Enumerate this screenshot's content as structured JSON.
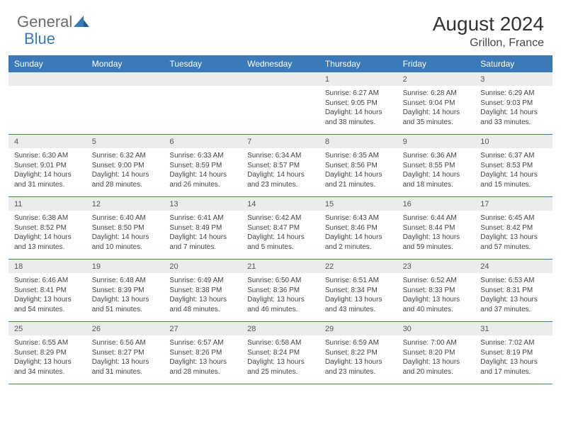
{
  "brand": {
    "part1": "General",
    "part2": "Blue"
  },
  "title": "August 2024",
  "location": "Grillon, France",
  "colors": {
    "header_bg": "#3a7ab8",
    "stripe_bg": "#ececec",
    "border": "#3a7ab8",
    "text": "#444444",
    "title_text": "#333333"
  },
  "dayNames": [
    "Sunday",
    "Monday",
    "Tuesday",
    "Wednesday",
    "Thursday",
    "Friday",
    "Saturday"
  ],
  "weeks": [
    {
      "nums": [
        "",
        "",
        "",
        "",
        "1",
        "2",
        "3"
      ],
      "cells": [
        null,
        null,
        null,
        null,
        {
          "sunrise": "6:27 AM",
          "sunset": "9:05 PM",
          "daylight": "14 hours and 38 minutes."
        },
        {
          "sunrise": "6:28 AM",
          "sunset": "9:04 PM",
          "daylight": "14 hours and 35 minutes."
        },
        {
          "sunrise": "6:29 AM",
          "sunset": "9:03 PM",
          "daylight": "14 hours and 33 minutes."
        }
      ]
    },
    {
      "nums": [
        "4",
        "5",
        "6",
        "7",
        "8",
        "9",
        "10"
      ],
      "cells": [
        {
          "sunrise": "6:30 AM",
          "sunset": "9:01 PM",
          "daylight": "14 hours and 31 minutes."
        },
        {
          "sunrise": "6:32 AM",
          "sunset": "9:00 PM",
          "daylight": "14 hours and 28 minutes."
        },
        {
          "sunrise": "6:33 AM",
          "sunset": "8:59 PM",
          "daylight": "14 hours and 26 minutes."
        },
        {
          "sunrise": "6:34 AM",
          "sunset": "8:57 PM",
          "daylight": "14 hours and 23 minutes."
        },
        {
          "sunrise": "6:35 AM",
          "sunset": "8:56 PM",
          "daylight": "14 hours and 21 minutes."
        },
        {
          "sunrise": "6:36 AM",
          "sunset": "8:55 PM",
          "daylight": "14 hours and 18 minutes."
        },
        {
          "sunrise": "6:37 AM",
          "sunset": "8:53 PM",
          "daylight": "14 hours and 15 minutes."
        }
      ]
    },
    {
      "nums": [
        "11",
        "12",
        "13",
        "14",
        "15",
        "16",
        "17"
      ],
      "cells": [
        {
          "sunrise": "6:38 AM",
          "sunset": "8:52 PM",
          "daylight": "14 hours and 13 minutes."
        },
        {
          "sunrise": "6:40 AM",
          "sunset": "8:50 PM",
          "daylight": "14 hours and 10 minutes."
        },
        {
          "sunrise": "6:41 AM",
          "sunset": "8:49 PM",
          "daylight": "14 hours and 7 minutes."
        },
        {
          "sunrise": "6:42 AM",
          "sunset": "8:47 PM",
          "daylight": "14 hours and 5 minutes."
        },
        {
          "sunrise": "6:43 AM",
          "sunset": "8:46 PM",
          "daylight": "14 hours and 2 minutes."
        },
        {
          "sunrise": "6:44 AM",
          "sunset": "8:44 PM",
          "daylight": "13 hours and 59 minutes."
        },
        {
          "sunrise": "6:45 AM",
          "sunset": "8:42 PM",
          "daylight": "13 hours and 57 minutes."
        }
      ]
    },
    {
      "nums": [
        "18",
        "19",
        "20",
        "21",
        "22",
        "23",
        "24"
      ],
      "cells": [
        {
          "sunrise": "6:46 AM",
          "sunset": "8:41 PM",
          "daylight": "13 hours and 54 minutes."
        },
        {
          "sunrise": "6:48 AM",
          "sunset": "8:39 PM",
          "daylight": "13 hours and 51 minutes."
        },
        {
          "sunrise": "6:49 AM",
          "sunset": "8:38 PM",
          "daylight": "13 hours and 48 minutes."
        },
        {
          "sunrise": "6:50 AM",
          "sunset": "8:36 PM",
          "daylight": "13 hours and 46 minutes."
        },
        {
          "sunrise": "6:51 AM",
          "sunset": "8:34 PM",
          "daylight": "13 hours and 43 minutes."
        },
        {
          "sunrise": "6:52 AM",
          "sunset": "8:33 PM",
          "daylight": "13 hours and 40 minutes."
        },
        {
          "sunrise": "6:53 AM",
          "sunset": "8:31 PM",
          "daylight": "13 hours and 37 minutes."
        }
      ]
    },
    {
      "nums": [
        "25",
        "26",
        "27",
        "28",
        "29",
        "30",
        "31"
      ],
      "cells": [
        {
          "sunrise": "6:55 AM",
          "sunset": "8:29 PM",
          "daylight": "13 hours and 34 minutes."
        },
        {
          "sunrise": "6:56 AM",
          "sunset": "8:27 PM",
          "daylight": "13 hours and 31 minutes."
        },
        {
          "sunrise": "6:57 AM",
          "sunset": "8:26 PM",
          "daylight": "13 hours and 28 minutes."
        },
        {
          "sunrise": "6:58 AM",
          "sunset": "8:24 PM",
          "daylight": "13 hours and 25 minutes."
        },
        {
          "sunrise": "6:59 AM",
          "sunset": "8:22 PM",
          "daylight": "13 hours and 23 minutes."
        },
        {
          "sunrise": "7:00 AM",
          "sunset": "8:20 PM",
          "daylight": "13 hours and 20 minutes."
        },
        {
          "sunrise": "7:02 AM",
          "sunset": "8:19 PM",
          "daylight": "13 hours and 17 minutes."
        }
      ]
    }
  ],
  "labels": {
    "sunrise": "Sunrise:",
    "sunset": "Sunset:",
    "daylight": "Daylight:"
  }
}
